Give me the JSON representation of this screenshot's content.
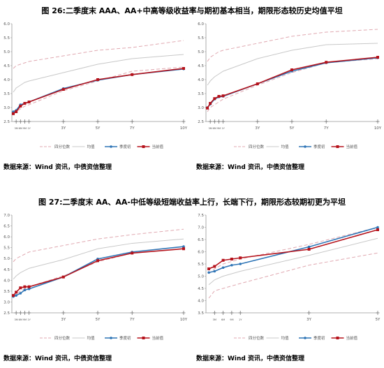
{
  "figures": [
    {
      "title": "图 26:二季度末 AAA、AA+中高等级收益率与期初基本相当，期限形态较历史均值平坦",
      "sources": [
        "数据来源：Wind 资讯，中债资信整理",
        "数据来源：Wind 资讯，中债资信整理"
      ]
    },
    {
      "title": "图 27:二季度末 AA、AA-中低等级短端收益率上行，长端下行，期限形态较期初更为平坦",
      "sources": [
        "数据来源：Wind 资讯，中债资信整理",
        "数据来源：Wind 资讯，中债资信整理"
      ]
    }
  ],
  "colors": {
    "quantile": "#e0a8b0",
    "mean": "#c8c8c8",
    "start": "#2e75b6",
    "end": "#b5121b"
  },
  "chart_data": [
    {
      "type": "line",
      "x": [
        0.083,
        0.25,
        0.5,
        0.75,
        1,
        3,
        5,
        7,
        10
      ],
      "tick_labels": [
        "3M",
        "6M",
        "9M",
        "1Y",
        "3Y",
        "5Y",
        "7Y",
        "10Y"
      ],
      "tick_x": [
        0.25,
        0.5,
        0.75,
        1,
        3,
        5,
        7,
        10
      ],
      "ylim": [
        2.5,
        6.0
      ],
      "yticks": [
        "2.5",
        "3.0",
        "3.5",
        "4.0",
        "4.5",
        "5.0",
        "5.5",
        "6.0"
      ],
      "legend": [
        "四分位数",
        "均值",
        "季度初",
        "当前值"
      ],
      "series": [
        {
          "name": "四分位数",
          "role": "quantile",
          "values": [
            4.4,
            4.5,
            4.55,
            4.6,
            4.65,
            4.85,
            5.05,
            5.15,
            5.4
          ]
        },
        {
          "name": "四分位数",
          "role": "quantile",
          "values": [
            2.8,
            2.85,
            2.95,
            3.05,
            3.1,
            3.6,
            3.95,
            4.3,
            4.45
          ]
        },
        {
          "name": "均值",
          "role": "mean",
          "values": [
            3.55,
            3.7,
            3.8,
            3.9,
            3.95,
            4.25,
            4.55,
            4.75,
            4.9
          ]
        },
        {
          "name": "季度初",
          "role": "start",
          "values": [
            2.85,
            2.9,
            3.1,
            3.15,
            3.2,
            3.68,
            3.98,
            4.18,
            4.38
          ]
        },
        {
          "name": "当前值",
          "role": "end",
          "values": [
            2.78,
            2.85,
            3.05,
            3.15,
            3.2,
            3.65,
            4.0,
            4.18,
            4.4
          ]
        }
      ]
    },
    {
      "type": "line",
      "x": [
        0.083,
        0.25,
        0.5,
        0.75,
        1,
        3,
        5,
        7,
        10
      ],
      "tick_labels": [
        "3M",
        "6M",
        "9M",
        "1Y",
        "3Y",
        "5Y",
        "7Y",
        "10Y"
      ],
      "tick_x": [
        0.25,
        0.5,
        0.75,
        1,
        3,
        5,
        7,
        10
      ],
      "ylim": [
        2.5,
        6.0
      ],
      "yticks": [
        "2.5",
        "3.0",
        "3.5",
        "4.0",
        "4.5",
        "5.0",
        "5.5",
        "6.0"
      ],
      "legend": [
        "四分位数",
        "均值",
        "季度初",
        "当前值"
      ],
      "series": [
        {
          "name": "四分位数",
          "role": "quantile",
          "values": [
            4.65,
            4.8,
            4.9,
            5.0,
            5.05,
            5.3,
            5.55,
            5.7,
            5.8
          ]
        },
        {
          "name": "四分位数",
          "role": "quantile",
          "values": [
            2.85,
            3.0,
            3.1,
            3.2,
            3.3,
            3.8,
            4.25,
            4.6,
            4.75
          ]
        },
        {
          "name": "均值",
          "role": "mean",
          "values": [
            3.8,
            3.95,
            4.1,
            4.2,
            4.3,
            4.75,
            5.05,
            5.25,
            5.3
          ]
        },
        {
          "name": "季度初",
          "role": "start",
          "values": [
            3.0,
            3.12,
            3.3,
            3.38,
            3.4,
            3.85,
            4.3,
            4.6,
            4.78
          ]
        },
        {
          "name": "当前值",
          "role": "end",
          "values": [
            2.98,
            3.15,
            3.32,
            3.4,
            3.42,
            3.85,
            4.35,
            4.62,
            4.8
          ]
        }
      ]
    },
    {
      "type": "line",
      "x": [
        0.083,
        0.25,
        0.5,
        0.75,
        1,
        3,
        5,
        7,
        10
      ],
      "tick_labels": [
        "3M",
        "6M",
        "9M",
        "1Y",
        "3Y",
        "5Y",
        "7Y",
        "10Y"
      ],
      "tick_x": [
        0.25,
        0.5,
        0.75,
        1,
        3,
        5,
        7,
        10
      ],
      "ylim": [
        2.5,
        7.0
      ],
      "yticks": [
        "2.5",
        "3.0",
        "3.5",
        "4.0",
        "4.5",
        "5.0",
        "5.5",
        "6.0",
        "6.5",
        "7.0"
      ],
      "legend": [
        "四分位数",
        "均值",
        "季度初",
        "当前值"
      ],
      "series": [
        {
          "name": "四分位数",
          "role": "quantile",
          "values": [
            4.85,
            5.0,
            5.1,
            5.2,
            5.3,
            5.6,
            5.9,
            6.1,
            6.35
          ]
        },
        {
          "name": "四分位数",
          "role": "quantile",
          "values": [
            3.25,
            3.35,
            3.5,
            3.6,
            3.7,
            4.2,
            4.85,
            5.25,
            5.45
          ]
        },
        {
          "name": "均值",
          "role": "mean",
          "values": [
            4.05,
            4.2,
            4.35,
            4.45,
            4.55,
            4.95,
            5.45,
            5.7,
            5.9
          ]
        },
        {
          "name": "季度初",
          "role": "start",
          "values": [
            3.25,
            3.3,
            3.4,
            3.55,
            3.6,
            4.15,
            4.98,
            5.3,
            5.55
          ]
        },
        {
          "name": "当前值",
          "role": "end",
          "values": [
            3.3,
            3.45,
            3.65,
            3.7,
            3.7,
            4.15,
            4.9,
            5.25,
            5.45
          ]
        }
      ]
    },
    {
      "type": "line",
      "x": [
        0.083,
        0.25,
        0.5,
        0.75,
        1,
        3,
        5
      ],
      "tick_labels": [
        "3M",
        "6M",
        "9M",
        "1Y",
        "3Y",
        "5Y"
      ],
      "tick_x": [
        0.25,
        0.5,
        0.75,
        1,
        3,
        5
      ],
      "ylim": [
        3.5,
        7.5
      ],
      "yticks": [
        "3.5",
        "4.0",
        "4.5",
        "5.0",
        "5.5",
        "6.0",
        "6.5",
        "7.0",
        "7.5"
      ],
      "legend": [
        "四分位数",
        "均值",
        "季度初",
        "当前值"
      ],
      "series": [
        {
          "name": "四分位数",
          "role": "quantile",
          "values": [
            5.1,
            5.3,
            5.5,
            5.6,
            5.7,
            6.3,
            7.0
          ]
        },
        {
          "name": "四分位数",
          "role": "quantile",
          "values": [
            4.1,
            4.4,
            4.5,
            4.6,
            4.7,
            5.45,
            5.95
          ]
        },
        {
          "name": "均值",
          "role": "mean",
          "values": [
            4.65,
            4.85,
            5.0,
            5.1,
            5.2,
            5.85,
            6.55
          ]
        },
        {
          "name": "季度初",
          "role": "start",
          "values": [
            5.15,
            5.2,
            5.35,
            5.45,
            5.5,
            6.2,
            7.0
          ]
        },
        {
          "name": "当前值",
          "role": "end",
          "values": [
            5.3,
            5.4,
            5.65,
            5.7,
            5.75,
            6.1,
            6.9
          ]
        }
      ]
    }
  ]
}
